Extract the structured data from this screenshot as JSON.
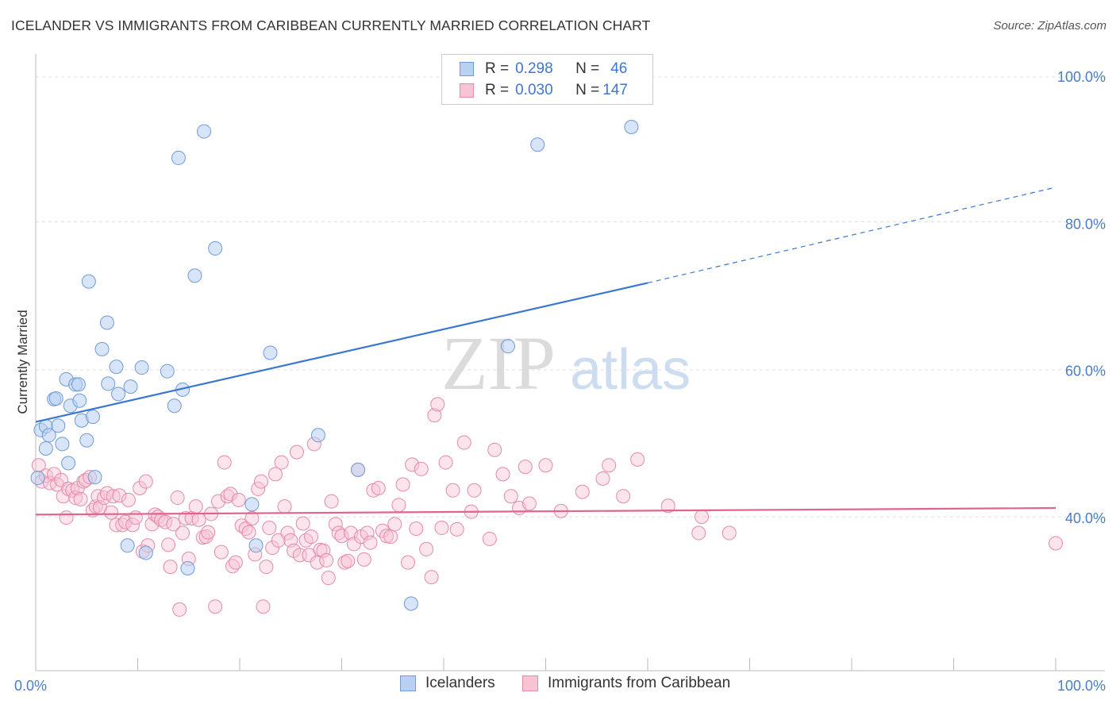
{
  "title": "ICELANDER VS IMMIGRANTS FROM CARIBBEAN CURRENTLY MARRIED CORRELATION CHART",
  "source": "Source: ZipAtlas.com",
  "watermark": {
    "zip": "ZIP",
    "atlas": "atlas"
  },
  "legend": {
    "r_label": "R =",
    "n_label": "N =",
    "rows": [
      {
        "name": "Icelanders",
        "r": "0.298",
        "n": "46",
        "fill": "#b8d0f2",
        "stroke": "#6f9bd8"
      },
      {
        "name": "Immigrants from Caribbean",
        "r": "0.030",
        "n": "147",
        "fill": "#f8c4d4",
        "stroke": "#e58aa8"
      }
    ]
  },
  "colors": {
    "blue_fill": "#b8d0f2",
    "blue_stroke": "#6f9bd8",
    "blue_line": "#3a78d0",
    "pink_fill": "#f8c4d4",
    "pink_stroke": "#e58aa8",
    "pink_line": "#e0648e",
    "grid": "#dddddd",
    "axis": "#bbbbbb",
    "tick_text": "#4a7cc9"
  },
  "chart_data": {
    "type": "scatter",
    "title": "ICELANDER VS IMMIGRANTS FROM CARIBBEAN CURRENTLY MARRIED CORRELATION CHART",
    "xlabel": "",
    "ylabel": "Currently Married",
    "xlim": [
      0,
      100
    ],
    "ylim": [
      20,
      102
    ],
    "x_tick_labels": [
      "0.0%",
      "100.0%"
    ],
    "y_ticks": [
      40,
      60,
      80,
      100
    ],
    "y_tick_labels": [
      "40.0%",
      "60.0%",
      "80.0%",
      "100.0%"
    ],
    "grid": true,
    "legend_position": "top-center",
    "series": [
      {
        "name": "Icelanders",
        "r": 0.298,
        "n": 46,
        "trend": {
          "x0": 0,
          "y0": 53.1,
          "x1": 60,
          "y1": 72.0,
          "dashed_to_x": 100,
          "dashed_to_y": 85.0
        },
        "points": [
          [
            0.2,
            45.5
          ],
          [
            0.5,
            52.0
          ],
          [
            1.0,
            52.5
          ],
          [
            1.3,
            51.3
          ],
          [
            1.0,
            49.5
          ],
          [
            1.8,
            56.2
          ],
          [
            2.0,
            56.3
          ],
          [
            2.2,
            52.6
          ],
          [
            2.6,
            50.1
          ],
          [
            3.0,
            58.9
          ],
          [
            3.2,
            47.5
          ],
          [
            3.4,
            55.3
          ],
          [
            3.9,
            58.2
          ],
          [
            4.2,
            58.2
          ],
          [
            4.3,
            56.0
          ],
          [
            4.5,
            53.3
          ],
          [
            5.0,
            50.6
          ],
          [
            5.2,
            72.2
          ],
          [
            5.6,
            53.8
          ],
          [
            5.8,
            45.6
          ],
          [
            6.5,
            63.0
          ],
          [
            7.0,
            66.6
          ],
          [
            7.1,
            58.3
          ],
          [
            7.9,
            60.6
          ],
          [
            8.1,
            56.9
          ],
          [
            9.0,
            36.3
          ],
          [
            9.3,
            57.9
          ],
          [
            10.4,
            60.5
          ],
          [
            10.8,
            35.3
          ],
          [
            12.9,
            60.0
          ],
          [
            13.6,
            55.3
          ],
          [
            14.0,
            89.0
          ],
          [
            14.4,
            57.5
          ],
          [
            14.9,
            33.2
          ],
          [
            15.6,
            73.0
          ],
          [
            16.5,
            92.6
          ],
          [
            17.6,
            76.7
          ],
          [
            21.2,
            41.9
          ],
          [
            21.6,
            36.3
          ],
          [
            23.0,
            62.5
          ],
          [
            27.7,
            51.3
          ],
          [
            31.6,
            46.6
          ],
          [
            36.8,
            28.4
          ],
          [
            46.3,
            63.4
          ],
          [
            49.2,
            90.8
          ],
          [
            58.4,
            93.2
          ]
        ]
      },
      {
        "name": "Immigrants from Caribbean",
        "r": 0.03,
        "n": 147,
        "trend": {
          "x0": 0,
          "y0": 40.5,
          "x1": 100,
          "y1": 41.4
        },
        "points": [
          [
            0.3,
            47.2
          ],
          [
            0.6,
            45.0
          ],
          [
            1.0,
            45.8
          ],
          [
            1.4,
            44.8
          ],
          [
            1.8,
            46.0
          ],
          [
            2.1,
            44.6
          ],
          [
            2.5,
            45.2
          ],
          [
            2.7,
            43.0
          ],
          [
            3.0,
            40.1
          ],
          [
            3.2,
            44.0
          ],
          [
            3.6,
            43.8
          ],
          [
            3.9,
            42.8
          ],
          [
            4.1,
            44.1
          ],
          [
            4.4,
            42.6
          ],
          [
            4.7,
            45.0
          ],
          [
            4.9,
            45.2
          ],
          [
            5.3,
            45.6
          ],
          [
            5.6,
            41.1
          ],
          [
            5.9,
            41.6
          ],
          [
            6.1,
            43.0
          ],
          [
            6.3,
            41.5
          ],
          [
            6.7,
            42.8
          ],
          [
            7.0,
            43.4
          ],
          [
            7.4,
            40.8
          ],
          [
            7.6,
            43.0
          ],
          [
            7.9,
            39.1
          ],
          [
            8.2,
            43.1
          ],
          [
            8.5,
            39.1
          ],
          [
            8.8,
            39.5
          ],
          [
            9.1,
            42.5
          ],
          [
            9.5,
            39.1
          ],
          [
            9.8,
            40.1
          ],
          [
            10.2,
            44.1
          ],
          [
            10.5,
            35.5
          ],
          [
            10.8,
            45.0
          ],
          [
            11.0,
            36.3
          ],
          [
            11.4,
            39.2
          ],
          [
            11.7,
            40.5
          ],
          [
            12.0,
            40.2
          ],
          [
            12.3,
            39.8
          ],
          [
            12.7,
            39.5
          ],
          [
            13.0,
            36.4
          ],
          [
            13.2,
            33.4
          ],
          [
            13.5,
            39.2
          ],
          [
            13.9,
            42.8
          ],
          [
            14.1,
            27.6
          ],
          [
            14.4,
            38.0
          ],
          [
            14.7,
            40.0
          ],
          [
            15.0,
            34.5
          ],
          [
            15.3,
            40.0
          ],
          [
            15.7,
            41.6
          ],
          [
            16.0,
            39.8
          ],
          [
            16.4,
            37.4
          ],
          [
            16.7,
            37.5
          ],
          [
            16.9,
            38.1
          ],
          [
            17.2,
            40.6
          ],
          [
            17.6,
            28.0
          ],
          [
            17.9,
            42.3
          ],
          [
            18.2,
            35.4
          ],
          [
            18.5,
            47.6
          ],
          [
            18.8,
            43.0
          ],
          [
            19.1,
            43.3
          ],
          [
            19.3,
            33.5
          ],
          [
            19.6,
            34.0
          ],
          [
            19.9,
            42.5
          ],
          [
            20.2,
            39.0
          ],
          [
            20.6,
            38.6
          ],
          [
            20.9,
            38.1
          ],
          [
            21.2,
            40.0
          ],
          [
            21.5,
            35.1
          ],
          [
            21.8,
            44.0
          ],
          [
            22.1,
            45.0
          ],
          [
            22.3,
            28.0
          ],
          [
            22.6,
            33.4
          ],
          [
            22.9,
            38.7
          ],
          [
            23.2,
            36.0
          ],
          [
            23.5,
            46.0
          ],
          [
            23.8,
            37.0
          ],
          [
            24.1,
            47.6
          ],
          [
            24.4,
            41.6
          ],
          [
            24.7,
            38.0
          ],
          [
            25.0,
            37.0
          ],
          [
            25.3,
            35.6
          ],
          [
            25.6,
            49.0
          ],
          [
            25.9,
            35.0
          ],
          [
            26.2,
            39.3
          ],
          [
            26.5,
            37.0
          ],
          [
            26.8,
            35.0
          ],
          [
            27.0,
            37.5
          ],
          [
            27.3,
            50.1
          ],
          [
            27.6,
            34.0
          ],
          [
            27.9,
            35.7
          ],
          [
            28.2,
            35.6
          ],
          [
            28.5,
            34.3
          ],
          [
            28.7,
            31.9
          ],
          [
            29.0,
            42.3
          ],
          [
            29.4,
            39.2
          ],
          [
            29.7,
            38.0
          ],
          [
            30.0,
            37.6
          ],
          [
            30.3,
            34.0
          ],
          [
            30.6,
            34.2
          ],
          [
            30.9,
            38.0
          ],
          [
            31.2,
            36.5
          ],
          [
            31.6,
            46.6
          ],
          [
            31.9,
            37.5
          ],
          [
            32.2,
            34.4
          ],
          [
            32.5,
            38.0
          ],
          [
            32.8,
            36.7
          ],
          [
            33.1,
            43.8
          ],
          [
            33.6,
            44.1
          ],
          [
            34.0,
            38.3
          ],
          [
            34.4,
            37.6
          ],
          [
            34.8,
            37.5
          ],
          [
            35.2,
            39.2
          ],
          [
            35.6,
            41.8
          ],
          [
            36.0,
            44.6
          ],
          [
            36.5,
            34.0
          ],
          [
            36.9,
            47.3
          ],
          [
            37.3,
            38.6
          ],
          [
            37.8,
            46.7
          ],
          [
            38.3,
            35.8
          ],
          [
            38.8,
            32.0
          ],
          [
            39.1,
            54.0
          ],
          [
            39.4,
            55.5
          ],
          [
            39.8,
            38.7
          ],
          [
            40.2,
            47.6
          ],
          [
            40.9,
            43.8
          ],
          [
            41.3,
            38.5
          ],
          [
            42.0,
            50.3
          ],
          [
            42.7,
            40.9
          ],
          [
            43.0,
            43.8
          ],
          [
            44.5,
            37.2
          ],
          [
            45.0,
            49.3
          ],
          [
            45.8,
            46.0
          ],
          [
            46.6,
            43.0
          ],
          [
            47.4,
            41.4
          ],
          [
            48.0,
            47.0
          ],
          [
            48.4,
            42.0
          ],
          [
            50.0,
            47.2
          ],
          [
            51.5,
            41.0
          ],
          [
            53.6,
            43.6
          ],
          [
            55.6,
            45.4
          ],
          [
            56.2,
            47.2
          ],
          [
            57.6,
            43.0
          ],
          [
            59.0,
            48.0
          ],
          [
            62.0,
            41.7
          ],
          [
            65.0,
            38.0
          ],
          [
            65.3,
            40.2
          ],
          [
            68.0,
            38.0
          ],
          [
            100.0,
            36.6
          ]
        ]
      }
    ]
  }
}
